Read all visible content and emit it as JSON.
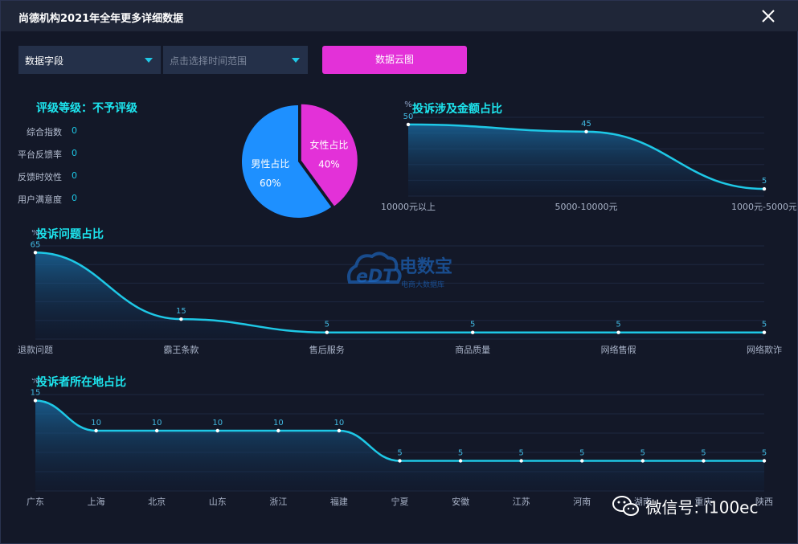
{
  "window": {
    "title": "尚德机构2021年全年更多详细数据",
    "close_label": "close"
  },
  "toolbar": {
    "field_select_value": "数据字段",
    "time_select_placeholder": "点击选择时间范围",
    "cloud_button_label": "数据云图"
  },
  "rating": {
    "title": "评级等级：不予评级",
    "metrics": [
      {
        "label": "综合指数",
        "value": "0"
      },
      {
        "label": "平台反馈率",
        "value": "0"
      },
      {
        "label": "反馈时效性",
        "value": "0"
      },
      {
        "label": "用户满意度",
        "value": "0"
      }
    ]
  },
  "gender_pie": {
    "chart_data": {
      "type": "pie",
      "slices": [
        {
          "label": "男性占比",
          "value_label": "60%",
          "value": 60,
          "color": "#1e90ff"
        },
        {
          "label": "女性占比",
          "value_label": "40%",
          "value": 40,
          "color": "#e331d8"
        }
      ]
    }
  },
  "amount_chart": {
    "title": "投诉涉及金额占比",
    "unit": "%",
    "chart_data": {
      "type": "area",
      "categories": [
        "10000元以上",
        "5000-10000元",
        "1000元-5000元"
      ],
      "values": [
        50,
        45,
        5
      ],
      "ylim": [
        0,
        55
      ]
    }
  },
  "problem_chart": {
    "title": "投诉问题占比",
    "unit": "%",
    "chart_data": {
      "type": "area",
      "categories": [
        "退款问题",
        "霸王条款",
        "售后服务",
        "商品质量",
        "网络售假",
        "网络欺诈"
      ],
      "values": [
        65,
        15,
        5,
        5,
        5,
        5
      ],
      "ylim": [
        0,
        70
      ]
    }
  },
  "location_chart": {
    "title": "投诉者所在地占比",
    "unit": "%",
    "chart_data": {
      "type": "area",
      "categories": [
        "广东",
        "上海",
        "北京",
        "山东",
        "浙江",
        "福建",
        "宁夏",
        "安徽",
        "江苏",
        "河南",
        "湖南",
        "重庆",
        "陕西"
      ],
      "values": [
        15,
        10,
        10,
        10,
        10,
        10,
        5,
        5,
        5,
        5,
        5,
        5,
        5
      ],
      "ylim": [
        0,
        16
      ]
    }
  },
  "watermark": {
    "logo_text": "eDT",
    "brand_name": "电数宝",
    "tagline": "电商大数据库"
  },
  "wechat_watermark": {
    "text": "微信号: i100ec"
  },
  "colors": {
    "line": "#1ec8e6",
    "title_cyan": "#1de6ef",
    "button_magenta": "#e331d8",
    "pie_blue": "#1e90ff"
  }
}
